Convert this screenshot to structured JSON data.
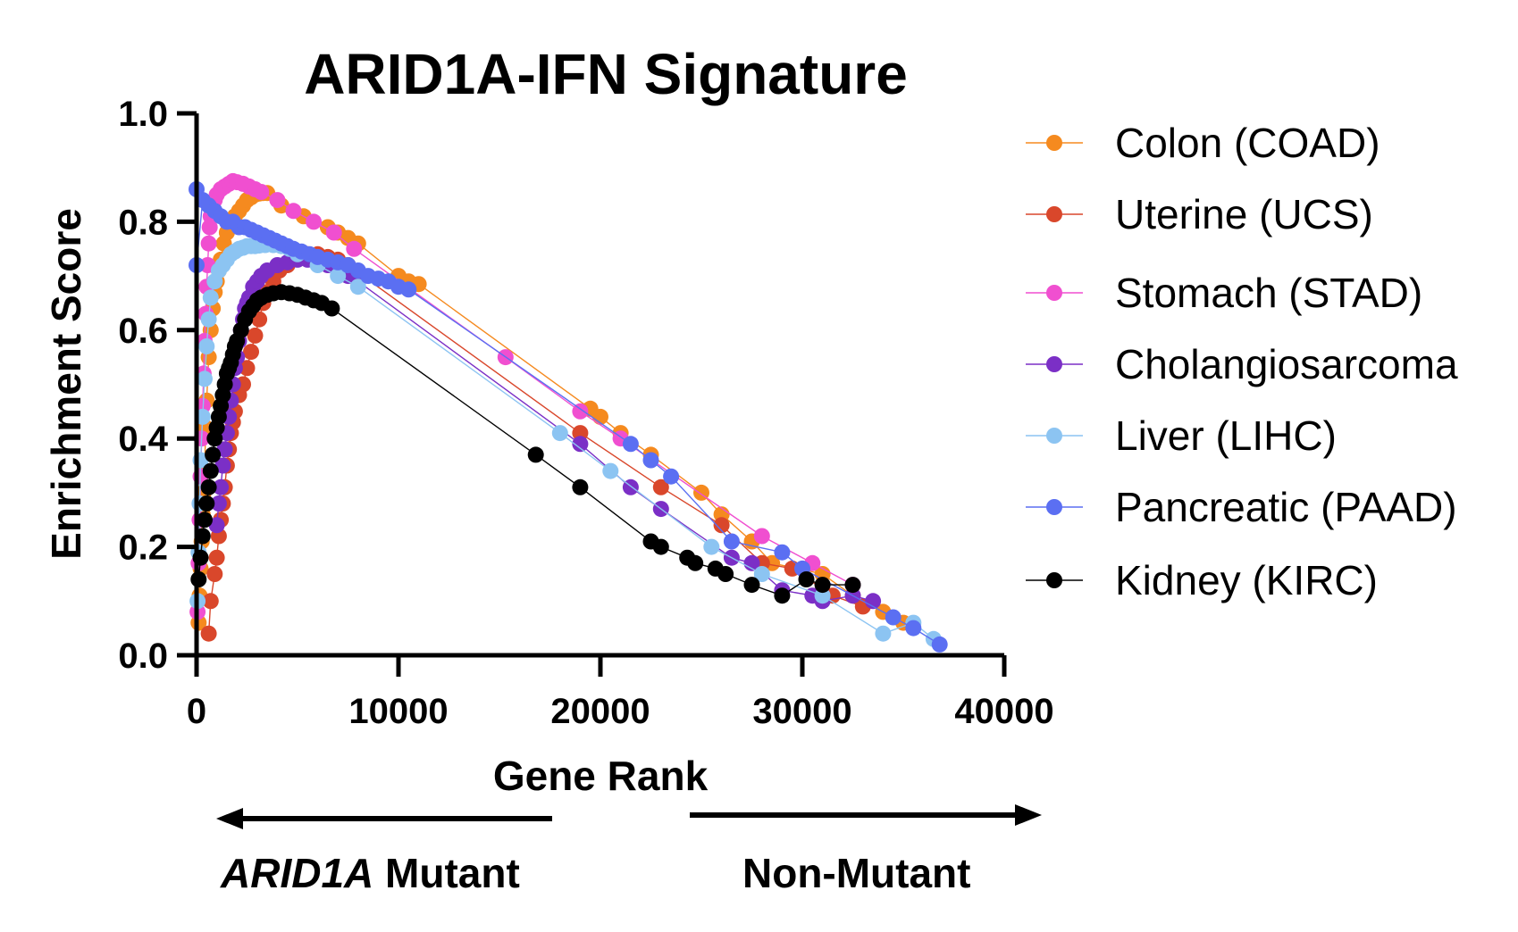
{
  "chart_data": {
    "type": "line",
    "title": "ARID1A-IFN Signature",
    "xlabel": "Gene Rank",
    "ylabel": "Enrichment Score",
    "xlim": [
      0,
      40000
    ],
    "ylim": [
      0,
      1.0
    ],
    "xticks": [
      "0",
      "10000",
      "20000",
      "30000",
      "40000"
    ],
    "yticks": [
      "0.0",
      "0.2",
      "0.4",
      "0.6",
      "0.8",
      "1.0"
    ],
    "grid": false,
    "legend_position": "right",
    "direction_labels": {
      "left_italic": "ARID1A",
      "left_rest": " Mutant",
      "right": "Non-Mutant"
    },
    "series": [
      {
        "name": "Colon (COAD)",
        "color": "#F58A1F",
        "x": [
          100,
          150,
          200,
          250,
          300,
          350,
          400,
          450,
          500,
          600,
          700,
          800,
          900,
          1000,
          1100,
          1200,
          1350,
          1500,
          1700,
          1900,
          2100,
          2300,
          2500,
          2700,
          2900,
          3100,
          3300,
          3500,
          4200,
          5300,
          6500,
          7000,
          7500,
          8000,
          10000,
          10500,
          11000,
          19500,
          20000,
          21000,
          22500,
          25000,
          26000,
          27500,
          28500,
          31000,
          32500,
          34000,
          35000
        ],
        "y": [
          0.06,
          0.11,
          0.16,
          0.21,
          0.26,
          0.3,
          0.34,
          0.42,
          0.47,
          0.55,
          0.6,
          0.64,
          0.67,
          0.69,
          0.71,
          0.73,
          0.76,
          0.78,
          0.8,
          0.81,
          0.82,
          0.83,
          0.84,
          0.845,
          0.85,
          0.852,
          0.853,
          0.853,
          0.83,
          0.81,
          0.79,
          0.78,
          0.77,
          0.76,
          0.7,
          0.69,
          0.685,
          0.455,
          0.44,
          0.41,
          0.37,
          0.3,
          0.26,
          0.21,
          0.17,
          0.15,
          0.11,
          0.08,
          0.06
        ]
      },
      {
        "name": "Uterine (UCS)",
        "color": "#D9472B",
        "x": [
          600,
          700,
          900,
          1000,
          1100,
          1200,
          1300,
          1400,
          1500,
          1600,
          1700,
          1800,
          1900,
          2100,
          2300,
          2500,
          2700,
          2900,
          3100,
          3300,
          3500,
          3800,
          4100,
          4500,
          5000,
          5500,
          6000,
          6500,
          7000,
          7500,
          19000,
          23000,
          26000,
          28000,
          29500,
          31500,
          33000
        ],
        "y": [
          0.04,
          0.1,
          0.15,
          0.18,
          0.22,
          0.25,
          0.28,
          0.31,
          0.35,
          0.38,
          0.41,
          0.43,
          0.45,
          0.48,
          0.5,
          0.53,
          0.56,
          0.59,
          0.62,
          0.65,
          0.67,
          0.69,
          0.71,
          0.72,
          0.735,
          0.74,
          0.74,
          0.735,
          0.73,
          0.72,
          0.41,
          0.31,
          0.24,
          0.17,
          0.16,
          0.11,
          0.09
        ]
      },
      {
        "name": "Stomach (STAD)",
        "color": "#F04FD0",
        "x": [
          50,
          100,
          150,
          200,
          250,
          300,
          350,
          400,
          450,
          500,
          550,
          600,
          650,
          700,
          800,
          900,
          1000,
          1200,
          1400,
          1600,
          1800,
          2000,
          2300,
          2600,
          2900,
          3200,
          4000,
          4800,
          5800,
          6800,
          7800,
          15300,
          19000,
          21000,
          28000,
          30500,
          32500
        ],
        "y": [
          0.08,
          0.17,
          0.25,
          0.33,
          0.4,
          0.46,
          0.52,
          0.58,
          0.63,
          0.68,
          0.72,
          0.76,
          0.79,
          0.81,
          0.83,
          0.84,
          0.85,
          0.86,
          0.865,
          0.87,
          0.875,
          0.873,
          0.87,
          0.865,
          0.86,
          0.855,
          0.84,
          0.82,
          0.8,
          0.78,
          0.75,
          0.55,
          0.45,
          0.4,
          0.22,
          0.17,
          0.13
        ]
      },
      {
        "name": "Cholangiosarcoma",
        "color": "#7B2FC6",
        "x": [
          1000,
          1100,
          1200,
          1300,
          1400,
          1500,
          1600,
          1700,
          1800,
          1900,
          2000,
          2100,
          2200,
          2300,
          2400,
          2500,
          2600,
          2800,
          3000,
          3200,
          3500,
          4000,
          4500,
          5000,
          5500,
          6000,
          6500,
          7000,
          7500,
          8000,
          19000,
          21500,
          23000,
          26500,
          27500,
          29000,
          30500,
          31000,
          32500,
          33500
        ],
        "y": [
          0.24,
          0.28,
          0.31,
          0.35,
          0.38,
          0.41,
          0.44,
          0.47,
          0.5,
          0.53,
          0.55,
          0.58,
          0.6,
          0.62,
          0.64,
          0.65,
          0.66,
          0.68,
          0.69,
          0.7,
          0.71,
          0.72,
          0.725,
          0.73,
          0.73,
          0.725,
          0.72,
          0.71,
          0.7,
          0.69,
          0.39,
          0.31,
          0.27,
          0.18,
          0.17,
          0.12,
          0.11,
          0.1,
          0.11,
          0.1
        ]
      },
      {
        "name": "Liver (LIHC)",
        "color": "#8CC4F2",
        "x": [
          50,
          100,
          150,
          200,
          300,
          400,
          500,
          600,
          700,
          900,
          1100,
          1300,
          1500,
          1700,
          1900,
          2100,
          2300,
          2500,
          2700,
          2900,
          3100,
          3400,
          3800,
          4200,
          4600,
          5000,
          6000,
          7000,
          8000,
          18000,
          20500,
          25500,
          28000,
          31000,
          34000,
          35500,
          36500
        ],
        "y": [
          0.1,
          0.19,
          0.28,
          0.36,
          0.44,
          0.51,
          0.57,
          0.62,
          0.66,
          0.69,
          0.71,
          0.72,
          0.73,
          0.74,
          0.745,
          0.75,
          0.752,
          0.755,
          0.755,
          0.755,
          0.756,
          0.757,
          0.757,
          0.755,
          0.75,
          0.74,
          0.72,
          0.7,
          0.68,
          0.41,
          0.34,
          0.2,
          0.15,
          0.11,
          0.04,
          0.06,
          0.03
        ]
      },
      {
        "name": "Pancreatic (PAAD)",
        "color": "#5B6FF2",
        "x": [
          0,
          0,
          300,
          600,
          900,
          1200,
          1500,
          1800,
          2100,
          2400,
          2700,
          3000,
          3300,
          3600,
          3900,
          4200,
          4500,
          4800,
          5200,
          5600,
          6000,
          6500,
          7000,
          7500,
          8000,
          8500,
          9000,
          9500,
          10000,
          10500,
          21500,
          22500,
          23500,
          26500,
          29000,
          30000,
          34500,
          35500,
          36800
        ],
        "y": [
          0.86,
          0.72,
          0.84,
          0.83,
          0.82,
          0.81,
          0.8,
          0.8,
          0.79,
          0.79,
          0.785,
          0.78,
          0.775,
          0.77,
          0.765,
          0.76,
          0.755,
          0.75,
          0.745,
          0.74,
          0.735,
          0.73,
          0.725,
          0.72,
          0.71,
          0.7,
          0.695,
          0.69,
          0.68,
          0.675,
          0.39,
          0.36,
          0.33,
          0.21,
          0.19,
          0.16,
          0.07,
          0.05,
          0.02
        ]
      },
      {
        "name": "Kidney (KIRC)",
        "color": "#000000",
        "x": [
          100,
          200,
          300,
          400,
          500,
          600,
          700,
          800,
          900,
          1000,
          1100,
          1200,
          1300,
          1400,
          1500,
          1600,
          1700,
          1800,
          1900,
          2000,
          2200,
          2400,
          2600,
          2800,
          3000,
          3200,
          3500,
          3800,
          4200,
          4600,
          5000,
          5400,
          5800,
          6200,
          6700,
          16800,
          19000,
          22500,
          23000,
          24300,
          24700,
          25700,
          26200,
          27500,
          29000,
          30200,
          31000,
          32500
        ],
        "y": [
          0.14,
          0.18,
          0.22,
          0.25,
          0.28,
          0.31,
          0.34,
          0.37,
          0.4,
          0.42,
          0.44,
          0.46,
          0.48,
          0.5,
          0.52,
          0.53,
          0.54,
          0.555,
          0.57,
          0.58,
          0.6,
          0.62,
          0.635,
          0.645,
          0.655,
          0.66,
          0.665,
          0.668,
          0.67,
          0.668,
          0.665,
          0.66,
          0.655,
          0.65,
          0.64,
          0.37,
          0.31,
          0.21,
          0.2,
          0.18,
          0.17,
          0.16,
          0.15,
          0.13,
          0.11,
          0.14,
          0.13,
          0.13
        ]
      }
    ]
  }
}
